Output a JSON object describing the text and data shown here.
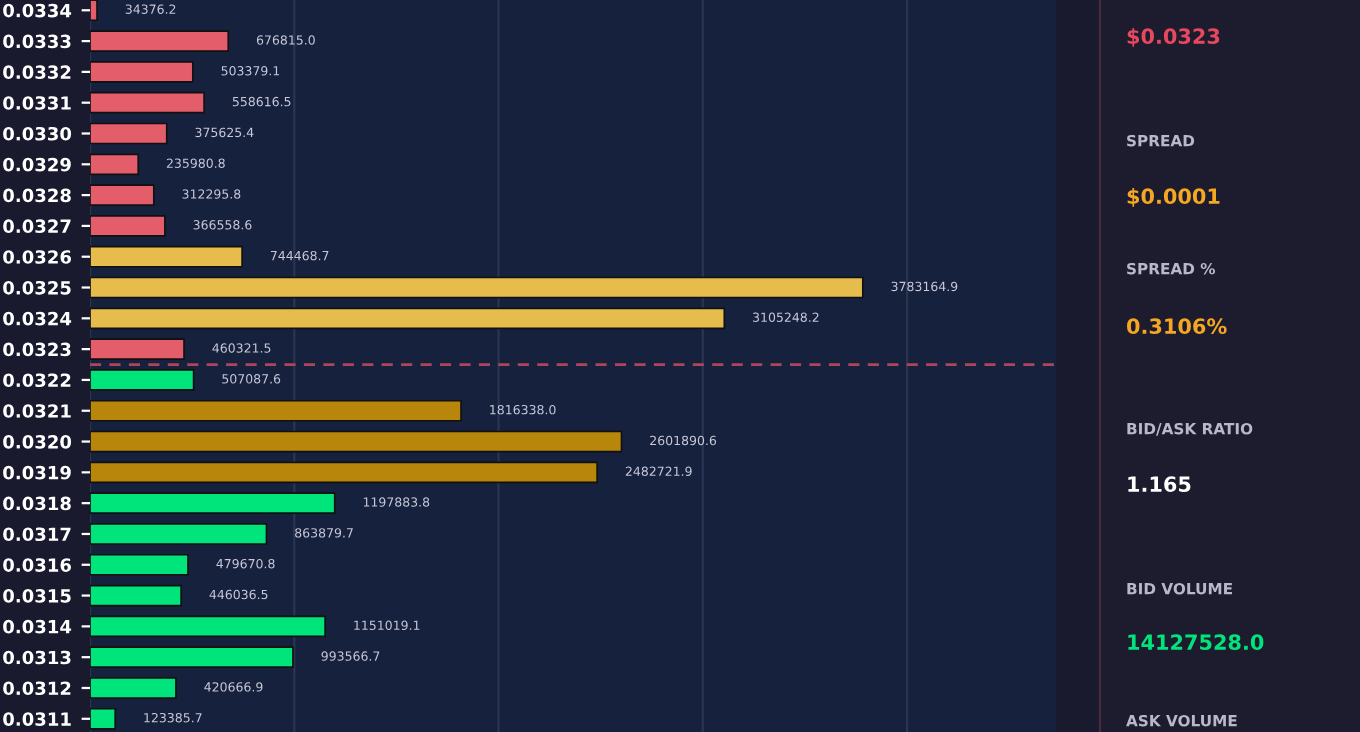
{
  "chart_data": [
    {
      "type": "bar",
      "orientation": "horizontal",
      "categories": [
        "0.0334",
        "0.0333",
        "0.0332",
        "0.0331",
        "0.0330",
        "0.0329",
        "0.0328",
        "0.0327",
        "0.0326",
        "0.0325",
        "0.0324",
        "0.0323",
        "0.0322",
        "0.0321",
        "0.0320",
        "0.0319",
        "0.0318",
        "0.0317",
        "0.0316",
        "0.0315",
        "0.0314",
        "0.0313",
        "0.0312",
        "0.0311"
      ],
      "values": [
        34376.2,
        676815.0,
        503379.1,
        558616.5,
        375625.4,
        235980.8,
        312295.8,
        366558.6,
        744468.7,
        3783164.9,
        3105248.2,
        460321.5,
        507087.6,
        1816338.0,
        2601890.6,
        2482721.9,
        1197883.8,
        863879.7,
        479670.8,
        446036.5,
        1151019.1,
        993566.7,
        420666.9,
        123385.7
      ],
      "colors": [
        "#e35d6a",
        "#e35d6a",
        "#e35d6a",
        "#e35d6a",
        "#e35d6a",
        "#e35d6a",
        "#e35d6a",
        "#e35d6a",
        "#e6bd4c",
        "#e6bd4c",
        "#e6bd4c",
        "#e35d6a",
        "#00e47c",
        "#b8860b",
        "#b8860b",
        "#b8860b",
        "#00e47c",
        "#00e47c",
        "#00e47c",
        "#00e47c",
        "#00e47c",
        "#00e47c",
        "#00e47c",
        "#00e47c"
      ],
      "value_labels": [
        "34376.2",
        "676815.0",
        "503379.1",
        "558616.5",
        "375625.4",
        "235980.8",
        "312295.8",
        "366558.6",
        "744468.7",
        "3783164.9",
        "3105248.2",
        "460321.5",
        "507087.6",
        "1816338.0",
        "2601890.6",
        "2482721.9",
        "1197883.8",
        "863879.7",
        "479670.8",
        "446036.5",
        "1151019.1",
        "993566.7",
        "420666.9",
        "123385.7"
      ],
      "xlim": [
        0,
        4729000
      ],
      "xticks": [
        {
          "value": 0,
          "label": null
        },
        {
          "value": 1000000,
          "label": null
        },
        {
          "value": 2000000,
          "label": null
        },
        {
          "value": 3000000,
          "label": null
        },
        {
          "value": 4000000,
          "label": null
        }
      ],
      "tick_labels": "y",
      "grid": "x",
      "ref_lines": [
        {
          "axis": "y",
          "value": "0.0323",
          "color": "#b0445a",
          "line_style": "dashed"
        }
      ]
    },
    {
      "type": "other",
      "annotations": [
        "$0.0323",
        "SPREAD",
        "$0.0001",
        "SPREAD %",
        "0.3106%",
        "BID/ASK RATIO",
        "1.165",
        "BID VOLUME",
        "14127528.0",
        "ASK VOLUME"
      ],
      "colors": [
        "#e8485f",
        "#b8b8c8",
        "#f5a623",
        "#b8b8c8",
        "#f5a623",
        "#b8b8c8",
        "#ffffff",
        "#b8b8c8",
        "#00e47c",
        "#b8b8c8"
      ]
    }
  ]
}
